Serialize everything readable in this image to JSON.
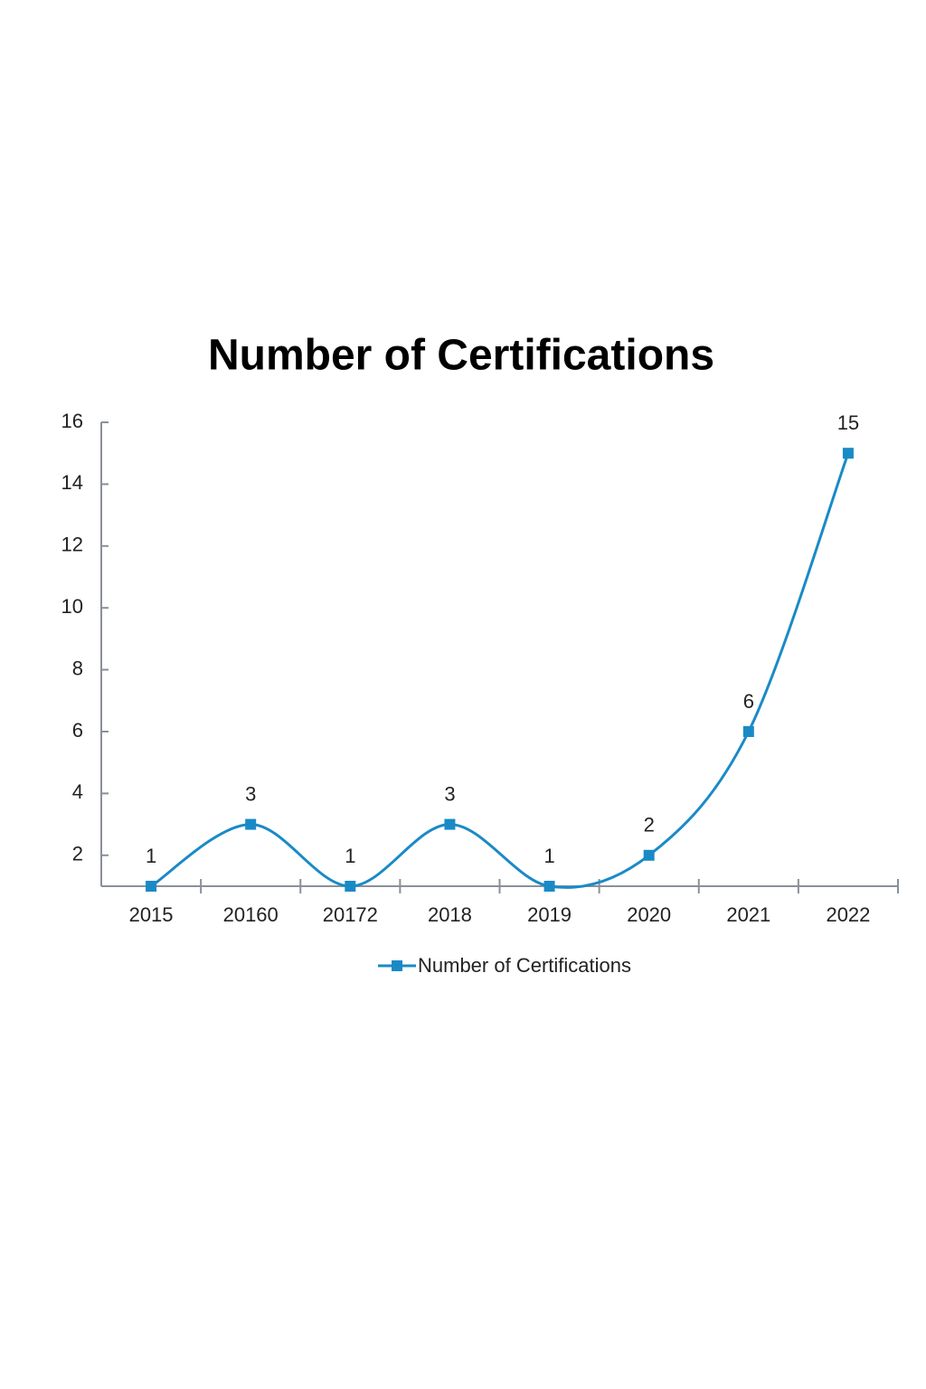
{
  "chart_data": {
    "type": "line",
    "title": "Number of Certifications",
    "categories": [
      "2015",
      "20160",
      "20172",
      "2018",
      "2019",
      "2020",
      "2021",
      "2022"
    ],
    "series": [
      {
        "name": "Number of Certifications",
        "color": "#1a8ac6",
        "values": [
          1,
          3,
          1,
          3,
          1,
          2,
          6,
          15
        ]
      }
    ],
    "ylim": [
      1,
      16
    ],
    "yticks": [
      2,
      4,
      6,
      8,
      10,
      12,
      14,
      16
    ],
    "grid": false,
    "smooth": true,
    "legend": "bottom"
  }
}
